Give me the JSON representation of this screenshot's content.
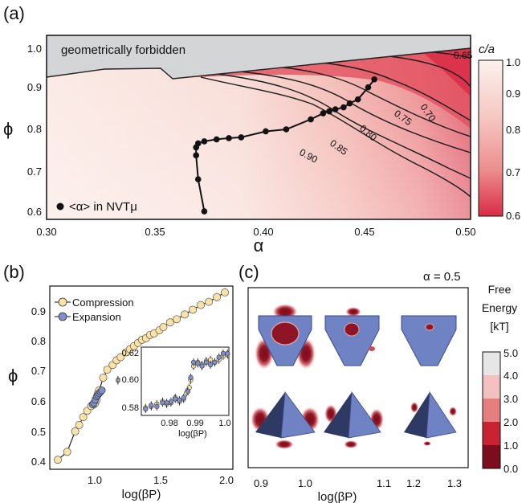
{
  "panel_a": {
    "label": "(a)",
    "forbidden_label": "geometrically forbidden",
    "legend_label": "<α> in NVTμ",
    "xlabel": "α",
    "ylabel": "ϕ",
    "x_ticks": [
      "0.30",
      "0.35",
      "0.40",
      "0.45",
      "0.50"
    ],
    "y_ticks": [
      "0.6",
      "0.7",
      "0.8",
      "0.9",
      "1.0"
    ],
    "contour_labels": [
      "0.65",
      "0.70",
      "0.75",
      "0.80",
      "0.85",
      "0.90"
    ],
    "colorbar": {
      "title": "c/a",
      "ticks": [
        "1.0",
        "0.9",
        "0.8",
        "0.7",
        "0.6"
      ]
    }
  },
  "panel_b": {
    "label": "(b)",
    "xlabel": "log(βP)",
    "ylabel": "ϕ",
    "x_ticks": [
      "1.0",
      "1.5",
      "2.0"
    ],
    "y_ticks": [
      "0.4",
      "0.5",
      "0.6",
      "0.7",
      "0.8",
      "0.9"
    ],
    "legend": [
      "Compression",
      "Expansion"
    ],
    "inset": {
      "xlabel": "log(βP)",
      "ylabel": "ϕ",
      "x_ticks": [
        "0.98",
        "0.99",
        "1.0"
      ],
      "y_ticks": [
        "0.58",
        "0.60",
        "0.62"
      ]
    }
  },
  "panel_c": {
    "label": "(c)",
    "title": "α = 0.5",
    "xlabel": "log(βP)",
    "x_ticks": [
      "0.9",
      "1.0",
      "1.1",
      "1.2",
      "1.3"
    ],
    "colorbar": {
      "title_lines": [
        "Free",
        "Energy",
        "[kT]"
      ],
      "ticks": [
        "5.0",
        "4.0",
        "3.0",
        "2.0",
        "1.0",
        "0.0"
      ]
    }
  },
  "chart_data": [
    {
      "type": "heatmap",
      "panel": "a",
      "xlabel": "α",
      "ylabel": "ϕ",
      "xlim": [
        0.295,
        0.502
      ],
      "ylim": [
        0.58,
        1.04
      ],
      "colorbar_label": "c/a",
      "colorbar_range": [
        0.6,
        1.0
      ],
      "path_series": {
        "x": [
          0.372,
          0.369,
          0.368,
          0.368,
          0.369,
          0.372,
          0.378,
          0.384,
          0.39,
          0.402,
          0.412,
          0.424,
          0.43,
          0.433,
          0.436,
          0.44,
          0.443,
          0.447,
          0.452,
          0.455
        ],
        "y": [
          0.6,
          0.68,
          0.74,
          0.76,
          0.77,
          0.775,
          0.78,
          0.783,
          0.785,
          0.8,
          0.805,
          0.83,
          0.845,
          0.85,
          0.855,
          0.86,
          0.87,
          0.88,
          0.91,
          0.93
        ]
      }
    },
    {
      "type": "line",
      "panel": "b",
      "xlabel": "log(βP)",
      "ylabel": "ϕ",
      "xlim": [
        0.65,
        2.02
      ],
      "ylim": [
        0.38,
        0.96
      ],
      "series": [
        {
          "name": "Compression",
          "x": [
            0.71,
            0.78,
            0.84,
            0.87,
            0.9,
            0.93,
            0.96,
            0.98,
            0.99,
            1.0,
            1.01,
            1.02,
            1.05,
            1.08,
            1.12,
            1.15,
            1.18,
            1.22,
            1.25,
            1.28,
            1.31,
            1.34,
            1.37,
            1.4,
            1.43,
            1.47,
            1.5,
            1.55,
            1.6,
            1.66,
            1.72,
            1.78,
            1.84,
            1.9,
            1.96
          ],
          "y": [
            0.41,
            0.435,
            0.5,
            0.52,
            0.545,
            0.565,
            0.58,
            0.585,
            0.59,
            0.6,
            0.62,
            0.63,
            0.67,
            0.695,
            0.71,
            0.725,
            0.735,
            0.75,
            0.76,
            0.77,
            0.78,
            0.79,
            0.795,
            0.805,
            0.81,
            0.82,
            0.83,
            0.845,
            0.855,
            0.87,
            0.885,
            0.9,
            0.91,
            0.925,
            0.94
          ]
        },
        {
          "name": "Expansion",
          "x": [
            0.97,
            0.98,
            0.99,
            1.0,
            1.01,
            1.02,
            1.03,
            1.04
          ],
          "y": [
            0.585,
            0.59,
            0.6,
            0.61,
            0.615,
            0.62,
            0.625,
            0.63
          ]
        }
      ]
    },
    {
      "type": "scatter",
      "panel": "b-inset",
      "xlabel": "log(βP)",
      "ylabel": "ϕ",
      "xlim": [
        0.972,
        1.003
      ],
      "ylim": [
        0.578,
        0.632
      ],
      "series": [
        {
          "name": "Compression",
          "x": [
            0.9735,
            0.9755,
            0.9775,
            0.9795,
            0.981,
            0.9825,
            0.984,
            0.9855,
            0.987,
            0.988,
            0.9885,
            0.989,
            0.9895,
            0.9905,
            0.992,
            0.9935,
            0.995,
            0.9965,
            0.998,
            0.9995,
            1.001,
            1.0025
          ],
          "y": [
            0.584,
            0.585,
            0.587,
            0.589,
            0.587,
            0.588,
            0.592,
            0.589,
            0.591,
            0.596,
            0.598,
            0.6,
            0.606,
            0.617,
            0.62,
            0.618,
            0.621,
            0.622,
            0.62,
            0.622,
            0.625,
            0.626
          ]
        },
        {
          "name": "Expansion",
          "x": [
            0.9735,
            0.9755,
            0.9775,
            0.9795,
            0.981,
            0.9825,
            0.984,
            0.9855,
            0.987,
            0.9885,
            0.9895,
            0.9905,
            0.992,
            0.9935,
            0.995,
            0.9965,
            0.998,
            0.9995,
            1.001,
            1.0025
          ],
          "y": [
            0.583,
            0.586,
            0.585,
            0.588,
            0.588,
            0.589,
            0.591,
            0.59,
            0.592,
            0.597,
            0.608,
            0.62,
            0.619,
            0.617,
            0.62,
            0.618,
            0.62,
            0.624,
            0.627,
            0.627
          ]
        }
      ]
    }
  ]
}
